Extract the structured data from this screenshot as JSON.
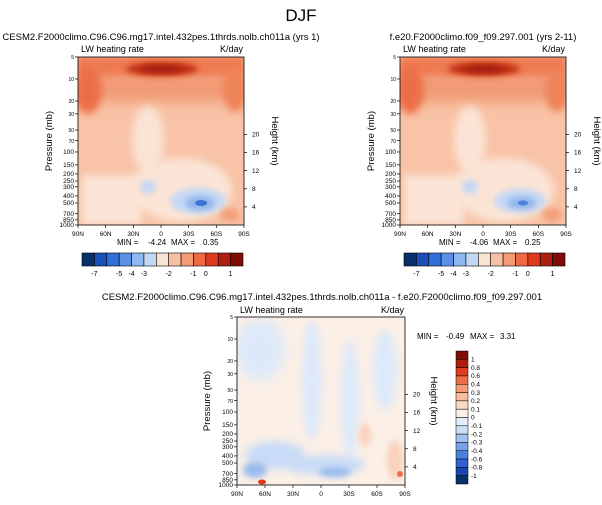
{
  "page": {
    "title": "DJF"
  },
  "colors": {
    "top_scale": [
      "#08306b",
      "#1a4fb5",
      "#2f6fd6",
      "#5a90e6",
      "#90b8f0",
      "#c4d8f5",
      "#fbe3d4",
      "#f8c0a2",
      "#f49a74",
      "#ee6a45",
      "#dd3a1e",
      "#b01e10",
      "#7f0c06"
    ],
    "diff_scale": [
      "#08306b",
      "#1946b0",
      "#2e63d0",
      "#4a80e0",
      "#75a2ea",
      "#a3c2f1",
      "#cddff8",
      "#e4eefb",
      "#fdf0e6",
      "#fbd9c4",
      "#f8bd9d",
      "#f49b76",
      "#ee6d48",
      "#de3b1f",
      "#b01d0f",
      "#800a06"
    ]
  },
  "chart_data": [
    {
      "type": "heatmap",
      "title": "CESM2.F2000climo.C96.C96.mg17.intel.432pes.1thrds.nolb.ch011a (yrs 1)",
      "subtitle_left": "LW heating rate",
      "subtitle_right": "K/day",
      "ylabel": "Pressure (mb)",
      "y2label": "Height (km)",
      "xticks": [
        "90N",
        "60N",
        "30N",
        "0",
        "30S",
        "60S",
        "90S"
      ],
      "yticks": [
        "1000",
        "850",
        "700",
        "500",
        "400",
        "300",
        "250",
        "200",
        "150",
        "100",
        "70",
        "50",
        "30",
        "20",
        "10",
        "5"
      ],
      "y2ticks": [
        "4",
        "8",
        "12",
        "16",
        "20"
      ],
      "min_label": "MIN =",
      "min_value": "-4.24",
      "max_label": "MAX =",
      "max_value": "0.35"
    },
    {
      "type": "heatmap",
      "title": "f.e20.F2000climo.f09_f09.297.001 (yrs 2-11)",
      "subtitle_left": "LW heating rate",
      "subtitle_right": "K/day",
      "ylabel": "Pressure (mb)",
      "y2label": "Height (km)",
      "xticks": [
        "90N",
        "60N",
        "30N",
        "0",
        "30S",
        "60S",
        "90S"
      ],
      "yticks": [
        "1000",
        "850",
        "700",
        "500",
        "400",
        "300",
        "250",
        "200",
        "150",
        "100",
        "70",
        "50",
        "30",
        "20",
        "10",
        "5"
      ],
      "y2ticks": [
        "4",
        "8",
        "12",
        "16",
        "20"
      ],
      "min_label": "MIN =",
      "min_value": "-4.06",
      "max_label": "MAX =",
      "max_value": "0.25"
    },
    {
      "type": "heatmap",
      "title": "CESM2.F2000climo.C96.C96.mg17.intel.432pes.1thrds.nolb.ch011a - f.e20.F2000climo.f09_f09.297.001",
      "subtitle_left": "LW heating rate",
      "subtitle_right": "K/day",
      "ylabel": "Pressure (mb)",
      "y2label": "Height (km)",
      "xticks": [
        "90N",
        "60N",
        "30N",
        "0",
        "30S",
        "60S",
        "90S"
      ],
      "yticks": [
        "1000",
        "850",
        "700",
        "500",
        "400",
        "300",
        "250",
        "200",
        "150",
        "100",
        "70",
        "50",
        "30",
        "20",
        "10",
        "5"
      ],
      "y2ticks": [
        "4",
        "8",
        "12",
        "16",
        "20"
      ],
      "min_label": "MIN =",
      "min_value": "-0.49",
      "max_label": "MAX =",
      "max_value": "3.31"
    }
  ],
  "colorbars": {
    "top_labels": [
      "-7",
      "-5",
      "-4",
      "-3",
      "-2",
      "-1",
      "0",
      "1"
    ],
    "diff_labels": [
      "1",
      "0.8",
      "0.6",
      "0.4",
      "0.3",
      "0.2",
      "0.1",
      "0",
      "-0.1",
      "-0.2",
      "-0.3",
      "-0.4",
      "-0.6",
      "-0.8",
      "-1"
    ]
  }
}
